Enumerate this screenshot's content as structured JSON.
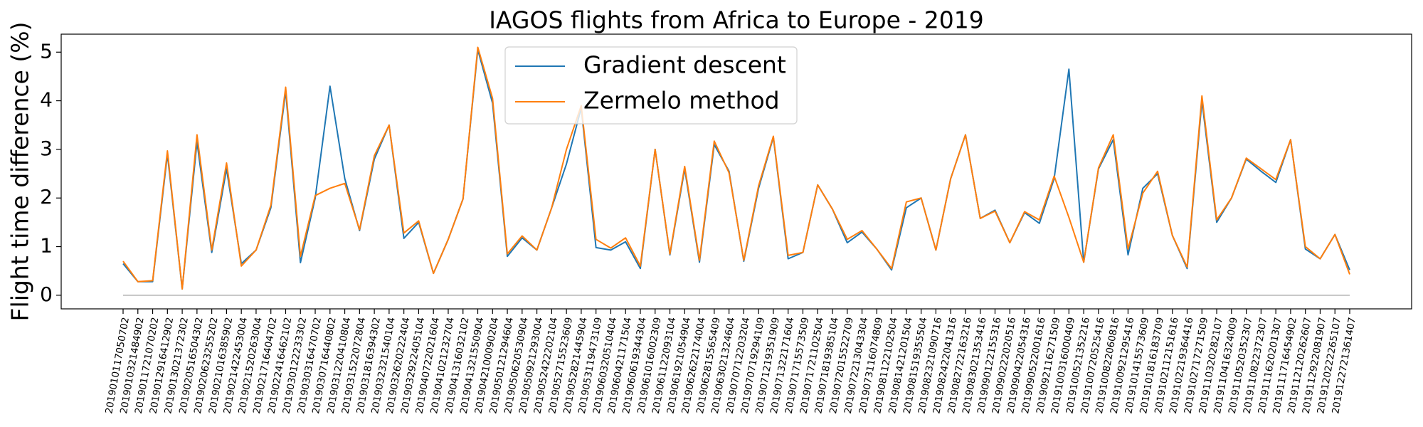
{
  "chart_data": {
    "type": "line",
    "title": "IAGOS flights from Africa to Europe - 2019",
    "y_label": "Flight time difference (%)",
    "categories": [
      "2019010117050702",
      "2019010321484902",
      "2019011721070202",
      "2019012916412902",
      "2019013021372302",
      "2019020516504302",
      "2019020623255202",
      "2019021016385902",
      "2019021422453004",
      "2019021520263004",
      "2019021716404702",
      "2019022416462102",
      "2019030122233302",
      "2019030316470702",
      "2019030716440802",
      "2019031220410804",
      "2019031522072804",
      "2019031816394302",
      "2019032321540104",
      "2019032620222404",
      "2019032922405104",
      "2019040722021604",
      "2019041021232704",
      "2019041316032102",
      "2019041321550904",
      "2019042100090204",
      "2019050121294604",
      "2019050620530904",
      "2019050921293004",
      "2019052422202104",
      "2019052715523609",
      "2019052821445904",
      "2019053119473109",
      "2019060320510404",
      "2019060421171504",
      "2019060619344304",
      "2019061016002309",
      "2019061122093104",
      "2019061921054904",
      "2019062622174004",
      "2019062815565409",
      "2019063021324604",
      "2019070712203204",
      "2019070719294109",
      "2019071219351909",
      "2019071322171604",
      "2019071715573509",
      "2019071721102504",
      "2019071819385104",
      "2019072015522709",
      "2019072213043304",
      "2019073116074809",
      "2019081122102504",
      "2019081421201504",
      "2019081519355504",
      "2019082321090716",
      "2019082422041316",
      "2019082722163216",
      "2019083021353416",
      "2019090122155316",
      "2019090222020516",
      "2019090422054316",
      "2019090522001616",
      "2019092116271509",
      "2019100316000409",
      "2019100521352216",
      "2019100720525416",
      "2019100822060816",
      "2019100921295416",
      "2019101415573609",
      "2019101816183709",
      "2019102112151616",
      "2019102219364416",
      "2019102717271509",
      "2019110320282107",
      "2019110416324009",
      "2019110520352307",
      "2019110822372307",
      "2019111620201307",
      "2019111716454902",
      "2019112120262607",
      "2019112922081907",
      "2019120222265107",
      "2019122721361407"
    ],
    "series": [
      {
        "name": "Gradient descent",
        "color": "#1f77b4",
        "values": [
          0.65,
          0.28,
          0.28,
          2.9,
          0.13,
          3.15,
          0.88,
          2.6,
          0.65,
          0.93,
          1.8,
          4.2,
          0.67,
          2.0,
          4.3,
          2.4,
          1.33,
          2.8,
          3.5,
          1.17,
          1.5,
          0.45,
          1.15,
          1.98,
          5.05,
          3.95,
          0.8,
          1.18,
          0.93,
          1.8,
          2.7,
          3.85,
          0.98,
          0.93,
          1.1,
          0.55,
          3.0,
          0.83,
          2.6,
          0.68,
          3.1,
          2.55,
          0.7,
          2.2,
          3.25,
          0.75,
          0.88,
          2.27,
          1.77,
          1.08,
          1.3,
          0.95,
          0.52,
          1.8,
          2.0,
          0.93,
          2.4,
          3.3,
          1.58,
          1.75,
          1.08,
          1.7,
          1.48,
          2.4,
          4.65,
          0.68,
          2.6,
          3.2,
          0.83,
          2.2,
          2.5,
          1.23,
          0.55,
          4.0,
          1.5,
          2.0,
          2.8,
          2.55,
          2.32,
          3.2,
          0.95,
          0.75,
          1.25,
          0.52
        ]
      },
      {
        "name": "Zermelo method",
        "color": "#ff7f0e",
        "values": [
          0.7,
          0.28,
          0.3,
          2.97,
          0.13,
          3.3,
          0.93,
          2.72,
          0.6,
          0.93,
          1.85,
          4.28,
          0.8,
          2.05,
          2.2,
          2.3,
          1.35,
          2.87,
          3.5,
          1.28,
          1.53,
          0.45,
          1.15,
          1.98,
          5.1,
          4.05,
          0.85,
          1.22,
          0.93,
          1.8,
          3.0,
          3.9,
          1.15,
          0.97,
          1.18,
          0.6,
          3.0,
          0.85,
          2.65,
          0.72,
          3.17,
          2.52,
          0.72,
          2.25,
          3.27,
          0.82,
          0.88,
          2.27,
          1.77,
          1.15,
          1.33,
          0.95,
          0.55,
          1.92,
          2.0,
          0.93,
          2.4,
          3.3,
          1.58,
          1.73,
          1.08,
          1.72,
          1.55,
          2.45,
          1.6,
          0.68,
          2.62,
          3.3,
          0.95,
          2.1,
          2.55,
          1.23,
          0.58,
          4.1,
          1.55,
          2.0,
          2.82,
          2.6,
          2.38,
          3.2,
          1.0,
          0.75,
          1.25,
          0.43
        ]
      }
    ],
    "ylim": [
      -0.28,
      5.37
    ],
    "yticks": [
      0,
      1,
      2,
      3,
      4,
      5
    ],
    "hline": 0,
    "legend": "upper center"
  }
}
